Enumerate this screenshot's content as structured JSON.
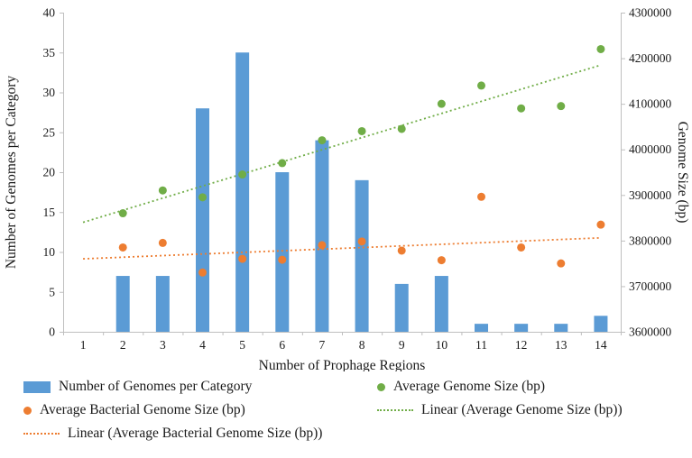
{
  "chart_data": {
    "type": "bar",
    "title": "",
    "xlabel": "Number of Prophage Regions",
    "ylabel_left": "Number of Genomes per Category",
    "ylabel_right": "Genome Size (bp)",
    "x": [
      1,
      2,
      3,
      4,
      5,
      6,
      7,
      8,
      9,
      10,
      11,
      12,
      13,
      14
    ],
    "ylim_left": [
      0,
      40
    ],
    "yticks_left": [
      0,
      5,
      10,
      15,
      20,
      25,
      30,
      35,
      40
    ],
    "ylim_right": [
      3600000,
      4300000
    ],
    "yticks_right": [
      3600000,
      3700000,
      3800000,
      3900000,
      4000000,
      4100000,
      4200000,
      4300000
    ],
    "grid": false,
    "legend_position": "bottom",
    "series": [
      {
        "name": "Number of Genomes per Category",
        "type": "bar",
        "axis": "left",
        "color": "#5b9bd5",
        "values": [
          0,
          7,
          7,
          28,
          35,
          20,
          24,
          19,
          6,
          7,
          1,
          1,
          1,
          2
        ]
      },
      {
        "name": "Average Genome Size (bp)",
        "type": "scatter",
        "axis": "right",
        "color": "#70ad47",
        "values": [
          null,
          3860000,
          3910000,
          3895000,
          3945000,
          3970000,
          4020000,
          4040000,
          4045000,
          4100000,
          4140000,
          4090000,
          4095000,
          4220000
        ]
      },
      {
        "name": "Average Bacterial Genome Size (bp)",
        "type": "scatter",
        "axis": "right",
        "color": "#ed7d31",
        "values": [
          null,
          3785000,
          3795000,
          3730000,
          3760000,
          3758000,
          3790000,
          3798000,
          3778000,
          3757000,
          3896000,
          3785000,
          3750000,
          3835000
        ]
      },
      {
        "name": "Linear (Average Genome Size (bp))",
        "type": "trend",
        "axis": "right",
        "color": "#70ad47",
        "start": 3840000,
        "end": 4185000
      },
      {
        "name": "Linear (Average Bacterial Genome Size (bp))",
        "type": "trend",
        "axis": "right",
        "color": "#ed7d31",
        "start": 3760000,
        "end": 3806000
      }
    ]
  }
}
